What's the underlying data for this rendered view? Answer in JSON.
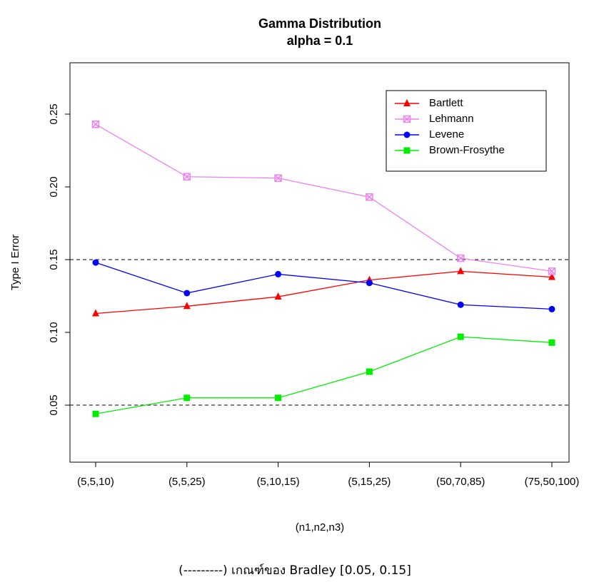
{
  "chart_data": {
    "type": "line",
    "title": "Gamma Distribution",
    "subtitle": "alpha = 0.1",
    "x_label": "(n1,n2,n3)",
    "y_label": "Type I Error",
    "categories": [
      "(5,5,10)",
      "(5,5,25)",
      "(5,10,15)",
      "(5,15,25)",
      "(50,70,85)",
      "(75,50,100)"
    ],
    "series": [
      {
        "name": "Bartlett",
        "color": "#ff0000",
        "marker": "triangle",
        "values": [
          0.113,
          0.118,
          0.1245,
          0.136,
          0.142,
          0.138
        ]
      },
      {
        "name": "Lehmann",
        "color": "#ee82ee",
        "marker": "square-x",
        "values": [
          0.243,
          0.207,
          0.206,
          0.193,
          0.151,
          0.142
        ]
      },
      {
        "name": "Levene",
        "color": "#0000ff",
        "marker": "circle",
        "values": [
          0.148,
          0.127,
          0.14,
          0.134,
          0.119,
          0.116
        ]
      },
      {
        "name": "Brown-Frosythe",
        "color": "#00ee00",
        "marker": "square",
        "values": [
          0.044,
          0.055,
          0.055,
          0.073,
          0.097,
          0.093
        ]
      }
    ],
    "reference_lines": [
      0.05,
      0.15
    ],
    "ylim": [
      0.0108,
      0.2853
    ],
    "yticks": [
      0.05,
      {
        "value": 0.1,
        "label": "0.10"
      },
      0.15,
      {
        "value": 0.2,
        "label": "0.20"
      },
      0.25
    ],
    "legend": "top-right",
    "caption": "(---------) เกณฑ์ของ Bradley [0.05, 0.15]"
  }
}
